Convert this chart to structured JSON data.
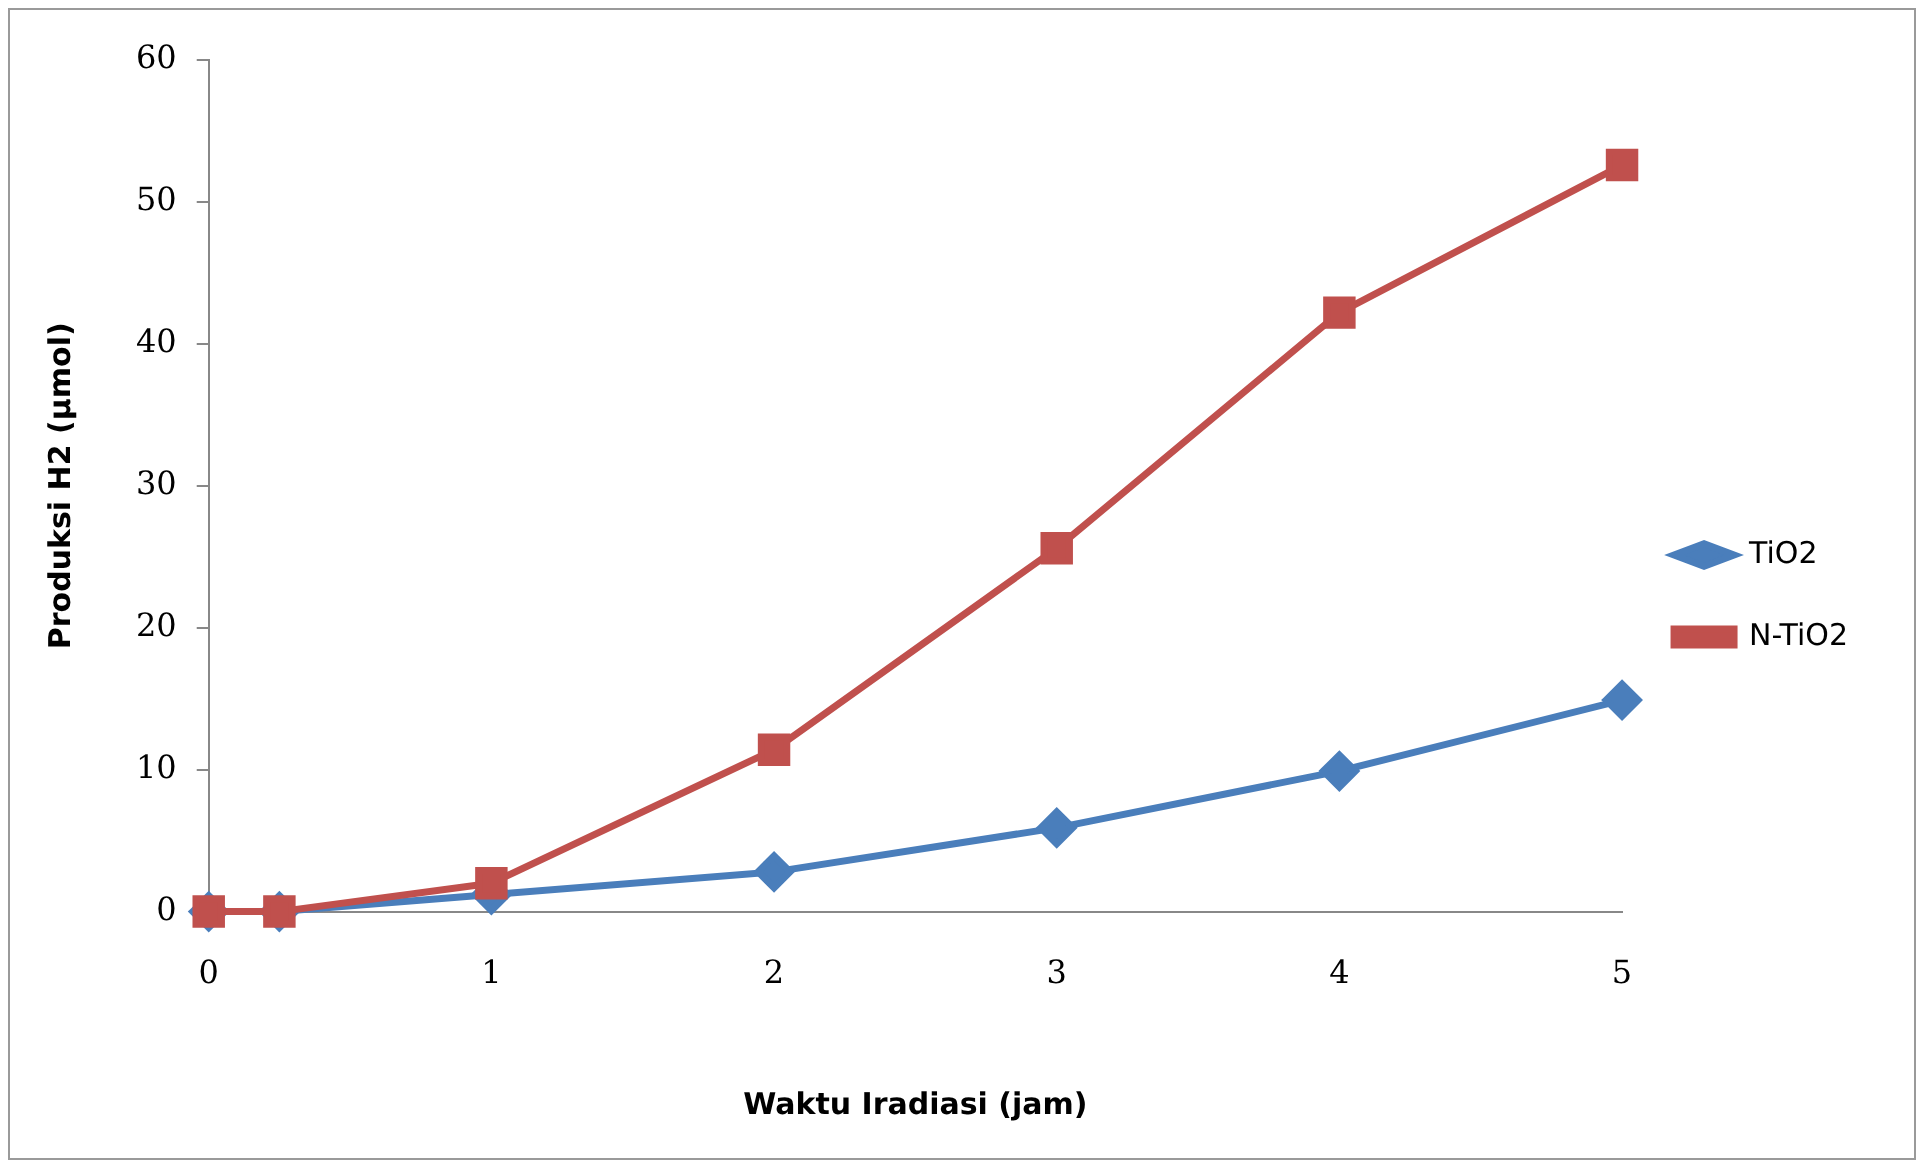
{
  "chart_data": {
    "type": "line",
    "xlabel": "Waktu Iradiasi (jam)",
    "ylabel": "Produksi H2 (µmol)",
    "x": [
      0,
      0.25,
      1,
      2,
      3,
      4,
      5
    ],
    "series": [
      {
        "name": "TiO2",
        "color": "#4a7ebb",
        "marker": "diamond",
        "values": [
          0,
          0,
          1.2,
          2.8,
          5.9,
          9.9,
          14.9
        ]
      },
      {
        "name": "N-TiO2",
        "color": "#c0504d",
        "marker": "square",
        "values": [
          0,
          0,
          2,
          11.4,
          25.6,
          42.2,
          52.6
        ]
      }
    ],
    "xlim": [
      0,
      5
    ],
    "xticks": [
      0,
      1,
      2,
      3,
      4,
      5
    ],
    "ylim": [
      0,
      60
    ],
    "yticks": [
      0,
      10,
      20,
      30,
      40,
      50,
      60
    ],
    "grid": false,
    "legend": "right",
    "line_style": "solid"
  }
}
